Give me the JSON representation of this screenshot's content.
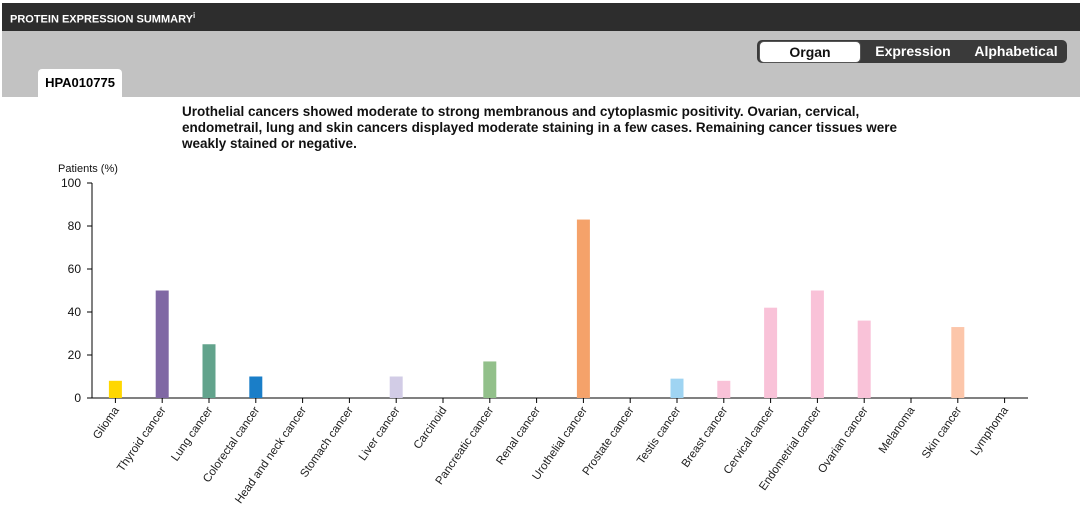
{
  "header": {
    "title": "PROTEIN EXPRESSION SUMMARY",
    "info_marker": "i"
  },
  "view_buttons": [
    {
      "label": "Organ",
      "active": true
    },
    {
      "label": "Expression",
      "active": false
    },
    {
      "label": "Alphabetical",
      "active": false
    }
  ],
  "tab": {
    "label": "HPA010775"
  },
  "description": "Urothelial cancers showed moderate to strong membranous and cytoplasmic positivity. Ovarian, cervical, endometrail, lung and skin cancers displayed moderate staining in a few cases. Remaining cancer tissues were weakly stained or negative.",
  "chart_data": {
    "type": "bar",
    "ylabel": "Patients (%)",
    "ylim": [
      0,
      100
    ],
    "yticks": [
      0,
      20,
      40,
      60,
      80,
      100
    ],
    "categories": [
      "Glioma",
      "Thyroid cancer",
      "Lung cancer",
      "Colorectal cancer",
      "Head and neck cancer",
      "Stomach cancer",
      "Liver cancer",
      "Carcinoid",
      "Pancreatic cancer",
      "Renal cancer",
      "Urothelial cancer",
      "Prostate cancer",
      "Testis cancer",
      "Breast cancer",
      "Cervical cancer",
      "Endometrial cancer",
      "Ovarian cancer",
      "Melanoma",
      "Skin cancer",
      "Lymphoma"
    ],
    "values": [
      8,
      50,
      25,
      10,
      0,
      0,
      10,
      0,
      17,
      0,
      83,
      0,
      9,
      8,
      42,
      50,
      36,
      0,
      33,
      0
    ],
    "colors": [
      "#ffd700",
      "#8068a4",
      "#62a38c",
      "#1a7ec8",
      "#cccccc",
      "#cccccc",
      "#d2cce6",
      "#cccccc",
      "#92c08a",
      "#cccccc",
      "#f5a26a",
      "#cccccc",
      "#9fd4f2",
      "#f9c2d8",
      "#f9c2d8",
      "#f9c2d8",
      "#f9c2d8",
      "#cccccc",
      "#fcc6aa",
      "#cccccc"
    ]
  }
}
